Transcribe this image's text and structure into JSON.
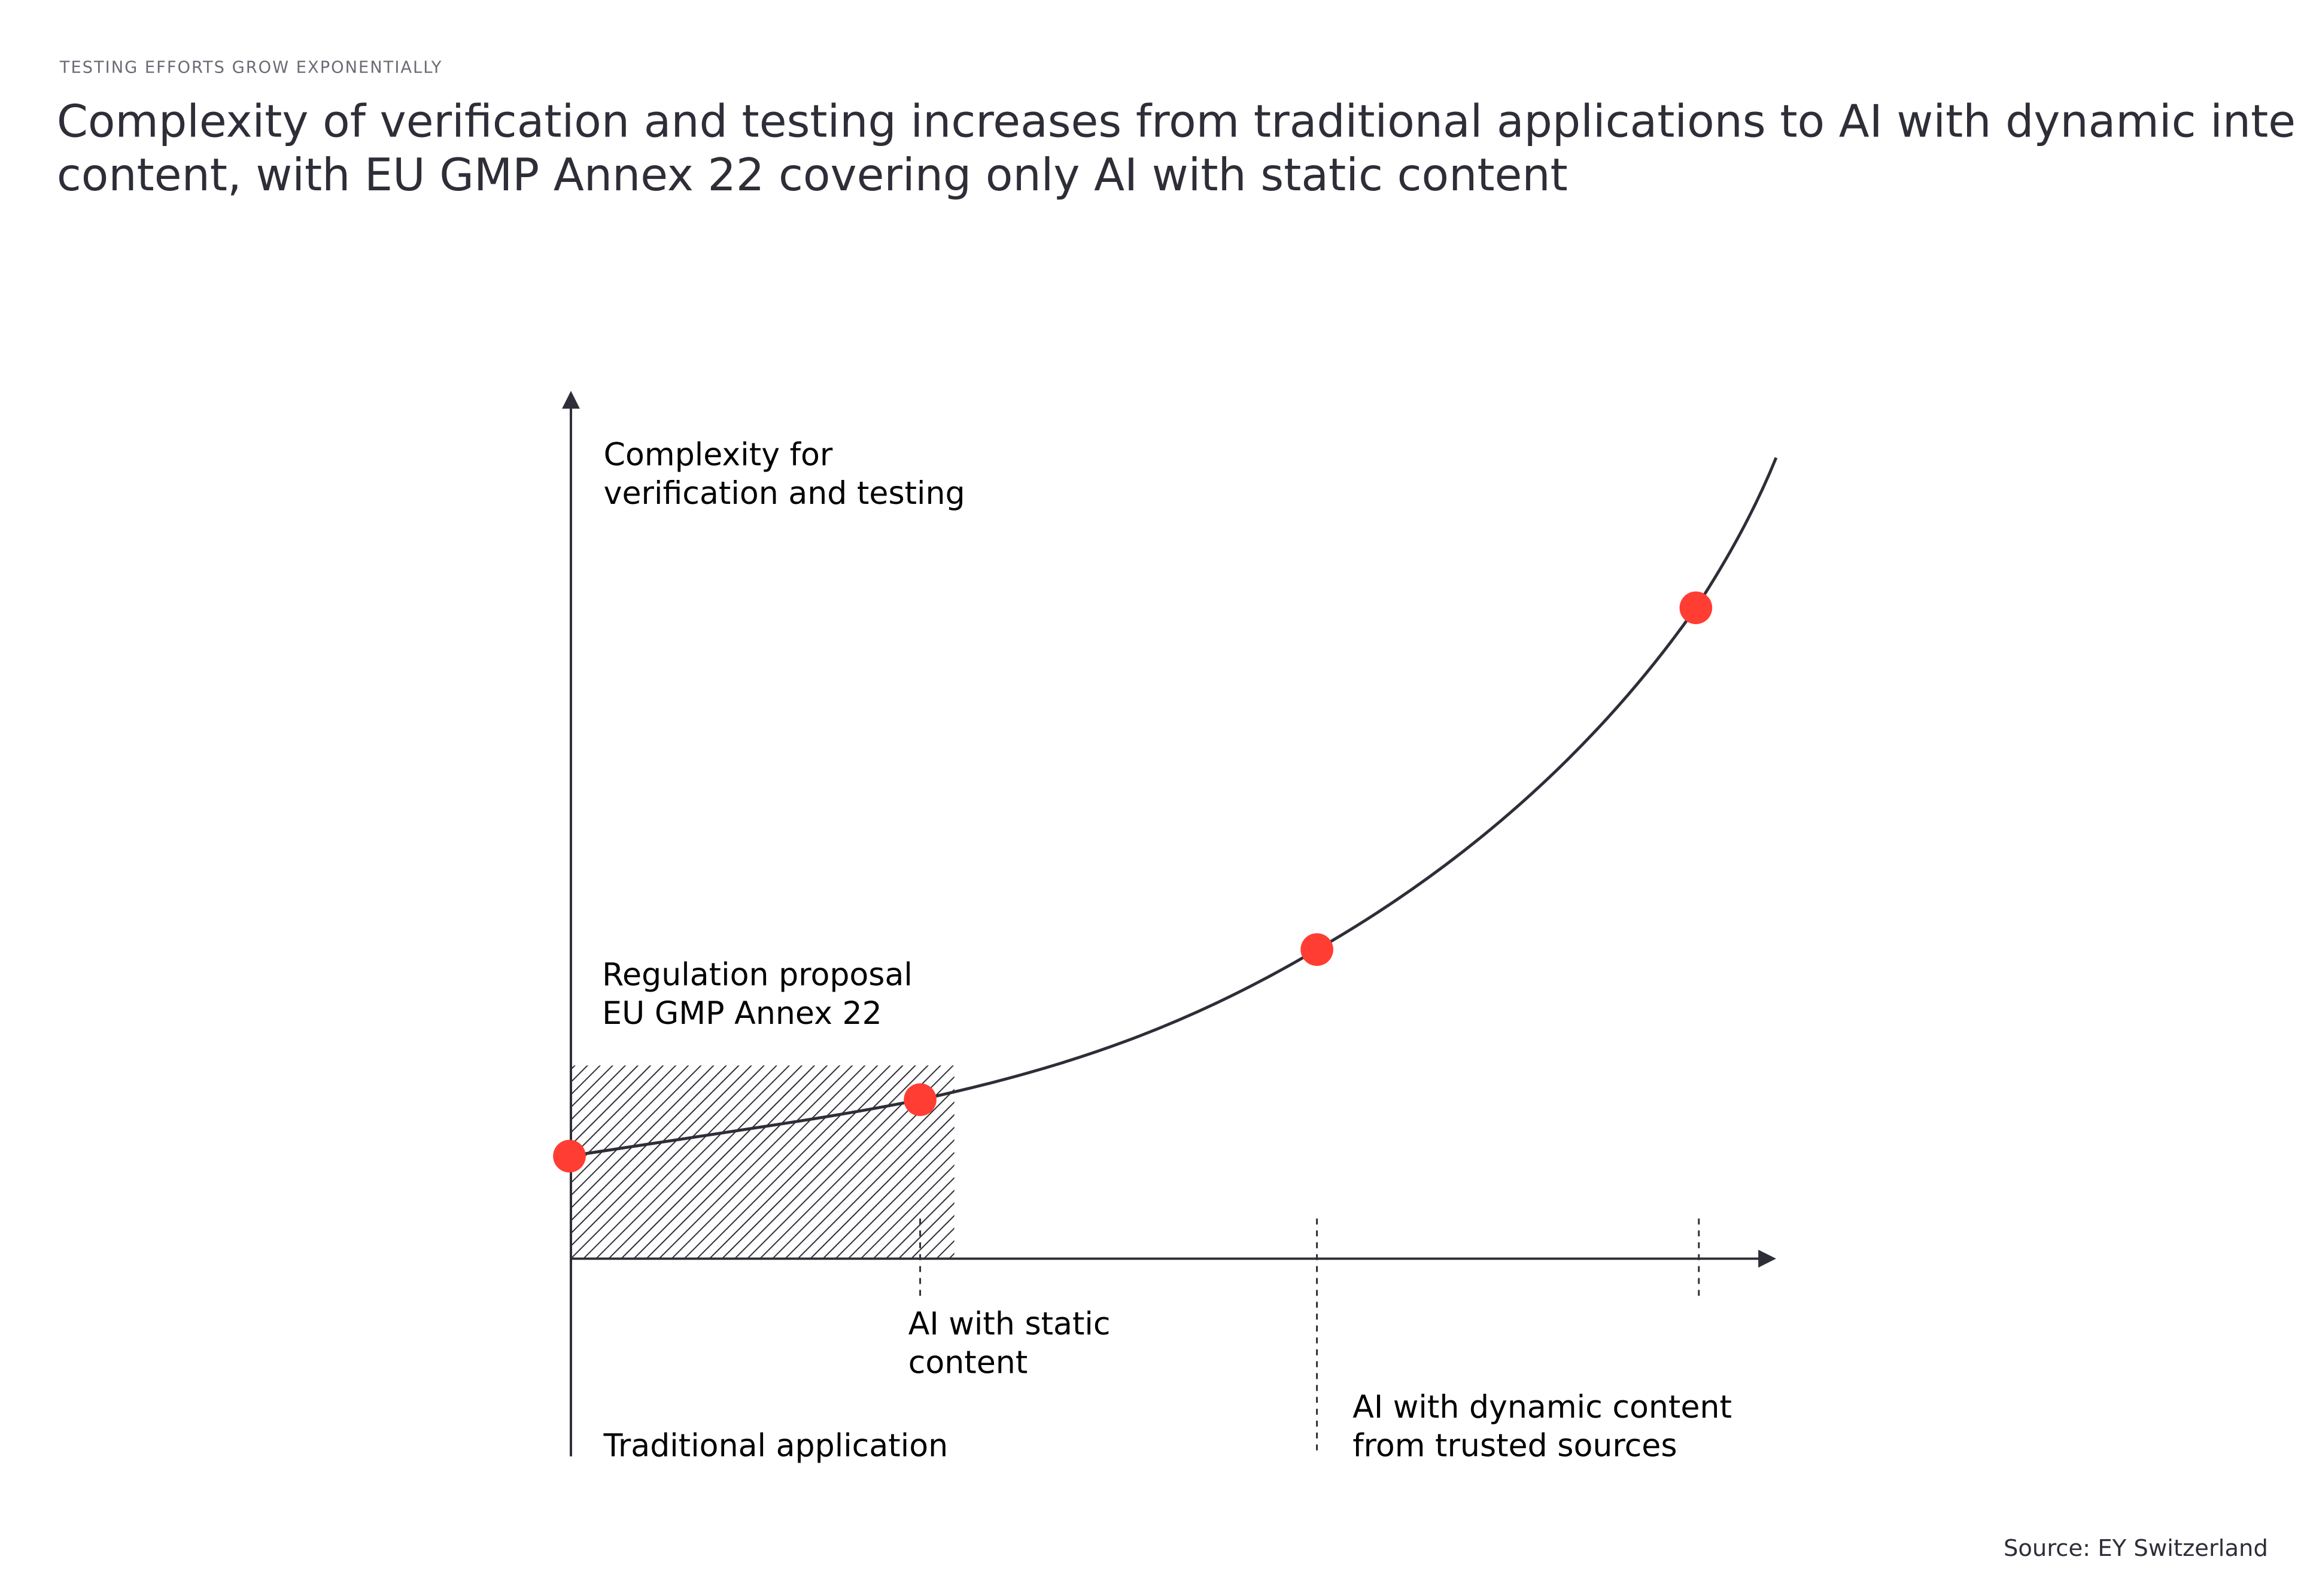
{
  "header": {
    "kicker": "TESTING EFFORTS GROW EXPONENTIALLY",
    "title": [
      "Complexity of verification and testing increases from traditional applications to AI with dynamic internet",
      "content, with EU GMP Annex 22 covering only AI with static content"
    ]
  },
  "diagram": {
    "y_axis_label": [
      "Complexity for",
      "verification and testing"
    ],
    "region_label": [
      "Regulation proposal",
      "EU GMP Annex 22"
    ],
    "stages": [
      {
        "label": [
          "Traditional application"
        ]
      },
      {
        "label": [
          "AI with static",
          "content"
        ]
      },
      {
        "label": [
          "AI with dynamic content",
          "from trusted sources"
        ]
      }
    ]
  },
  "source": "Source: EY Switzerland"
}
